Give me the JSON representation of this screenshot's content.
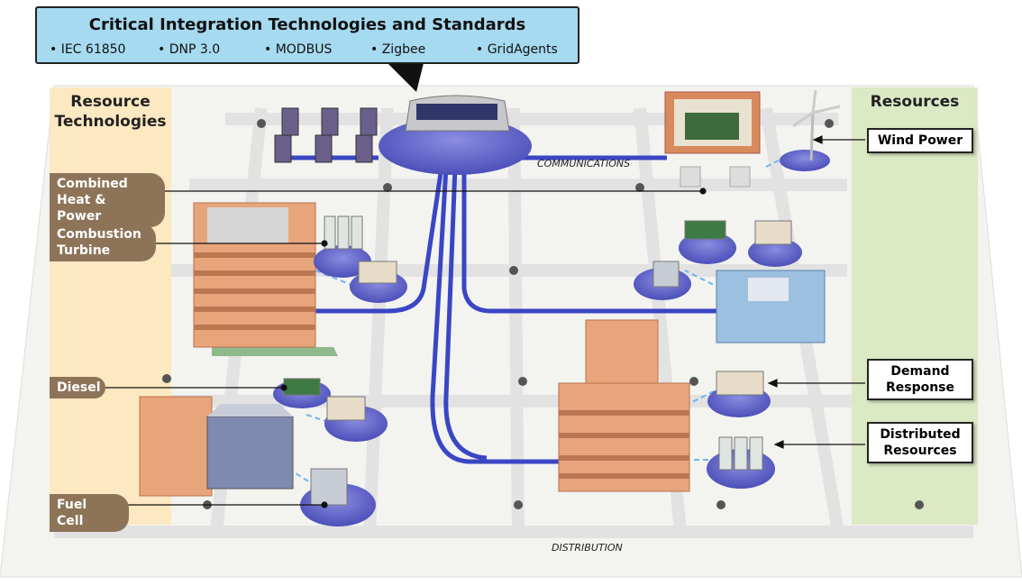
{
  "header": {
    "title": "Critical Integration Technologies and Standards",
    "standards": [
      "• IEC 61850",
      "• DNP 3.0",
      "• MODBUS",
      "• Zigbee",
      "• GridAgents"
    ]
  },
  "left_panel": {
    "title": "Resource Technologies",
    "labels": [
      "Combined Heat & Power",
      "Combustion Turbine",
      "Diesel",
      "Fuel Cell"
    ]
  },
  "right_panel": {
    "title": "Resources",
    "labels": [
      "Wind Power",
      "Demand Response",
      "Distributed Resources"
    ]
  },
  "network_labels": [
    "COMMUNICATIONS",
    "DISTRIBUTION"
  ]
}
